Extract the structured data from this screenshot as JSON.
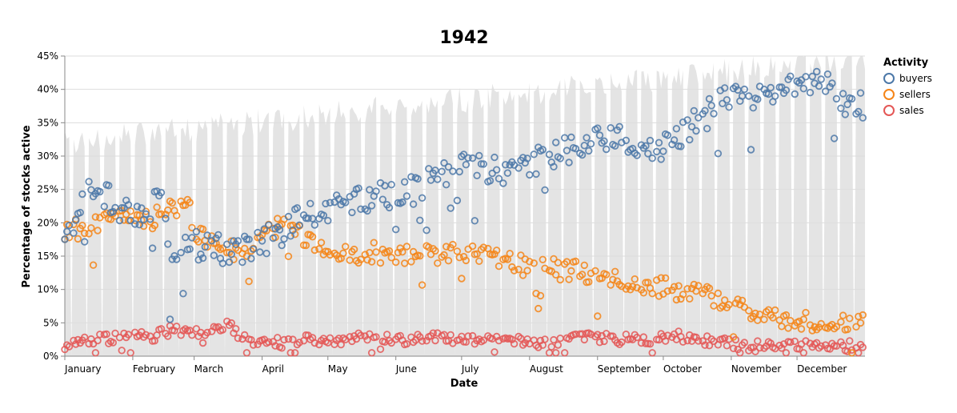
{
  "chart_data": {
    "type": "scatter",
    "title": "1942",
    "xlabel": "Date",
    "ylabel": "Percentage of stocks active",
    "ylim": [
      0,
      0.45
    ],
    "y_ticks": [
      "0%",
      "5%",
      "10%",
      "15%",
      "20%",
      "25%",
      "30%",
      "35%",
      "40%",
      "45%"
    ],
    "x_ticks": [
      "January",
      "February",
      "March",
      "April",
      "May",
      "June",
      "July",
      "August",
      "September",
      "October",
      "November",
      "December"
    ],
    "legend": {
      "title": "Activity",
      "entries": [
        "buyers",
        "sellers",
        "sales"
      ],
      "position": "top-right"
    },
    "colors": {
      "buyers": "#4c78a8",
      "sellers": "#f58518",
      "sales": "#e45756",
      "background_area": "#e4e4e4"
    },
    "x_domain_days": [
      0,
      365
    ],
    "keypoints": {
      "buyers": [
        [
          0,
          0.16
        ],
        [
          5,
          0.21
        ],
        [
          10,
          0.24
        ],
        [
          20,
          0.24
        ],
        [
          25,
          0.225
        ],
        [
          30,
          0.21
        ],
        [
          40,
          0.225
        ],
        [
          45,
          0.23
        ],
        [
          48,
          0.11
        ],
        [
          49,
          0.15
        ],
        [
          55,
          0.18
        ],
        [
          60,
          0.165
        ],
        [
          70,
          0.16
        ],
        [
          80,
          0.16
        ],
        [
          90,
          0.17
        ],
        [
          100,
          0.19
        ],
        [
          110,
          0.21
        ],
        [
          120,
          0.22
        ],
        [
          130,
          0.23
        ],
        [
          140,
          0.24
        ],
        [
          150,
          0.245
        ],
        [
          160,
          0.25
        ],
        [
          170,
          0.275
        ],
        [
          180,
          0.285
        ],
        [
          190,
          0.285
        ],
        [
          200,
          0.28
        ],
        [
          210,
          0.285
        ],
        [
          220,
          0.3
        ],
        [
          230,
          0.31
        ],
        [
          240,
          0.32
        ],
        [
          250,
          0.33
        ],
        [
          260,
          0.32
        ],
        [
          270,
          0.31
        ],
        [
          280,
          0.33
        ],
        [
          290,
          0.355
        ],
        [
          300,
          0.38
        ],
        [
          310,
          0.39
        ],
        [
          320,
          0.39
        ],
        [
          330,
          0.4
        ],
        [
          340,
          0.415
        ],
        [
          345,
          0.415
        ],
        [
          355,
          0.38
        ],
        [
          365,
          0.375
        ]
      ],
      "sellers": [
        [
          0,
          0.19
        ],
        [
          10,
          0.19
        ],
        [
          20,
          0.21
        ],
        [
          30,
          0.21
        ],
        [
          40,
          0.205
        ],
        [
          50,
          0.22
        ],
        [
          55,
          0.24
        ],
        [
          60,
          0.185
        ],
        [
          70,
          0.165
        ],
        [
          80,
          0.155
        ],
        [
          90,
          0.185
        ],
        [
          100,
          0.2
        ],
        [
          110,
          0.175
        ],
        [
          120,
          0.16
        ],
        [
          130,
          0.155
        ],
        [
          140,
          0.155
        ],
        [
          150,
          0.15
        ],
        [
          160,
          0.15
        ],
        [
          170,
          0.155
        ],
        [
          180,
          0.15
        ],
        [
          190,
          0.15
        ],
        [
          200,
          0.145
        ],
        [
          210,
          0.135
        ],
        [
          220,
          0.13
        ],
        [
          230,
          0.13
        ],
        [
          240,
          0.12
        ],
        [
          250,
          0.115
        ],
        [
          260,
          0.115
        ],
        [
          270,
          0.105
        ],
        [
          280,
          0.1
        ],
        [
          290,
          0.09
        ],
        [
          300,
          0.085
        ],
        [
          310,
          0.075
        ],
        [
          320,
          0.065
        ],
        [
          330,
          0.055
        ],
        [
          340,
          0.05
        ],
        [
          350,
          0.045
        ],
        [
          360,
          0.055
        ],
        [
          365,
          0.045
        ]
      ],
      "sales": [
        [
          0,
          0.015
        ],
        [
          10,
          0.025
        ],
        [
          20,
          0.025
        ],
        [
          30,
          0.03
        ],
        [
          40,
          0.03
        ],
        [
          50,
          0.04
        ],
        [
          60,
          0.035
        ],
        [
          70,
          0.04
        ],
        [
          75,
          0.05
        ],
        [
          80,
          0.025
        ],
        [
          90,
          0.02
        ],
        [
          100,
          0.02
        ],
        [
          110,
          0.025
        ],
        [
          120,
          0.025
        ],
        [
          130,
          0.025
        ],
        [
          140,
          0.03
        ],
        [
          150,
          0.025
        ],
        [
          160,
          0.025
        ],
        [
          170,
          0.03
        ],
        [
          180,
          0.025
        ],
        [
          190,
          0.025
        ],
        [
          200,
          0.025
        ],
        [
          210,
          0.02
        ],
        [
          220,
          0.02
        ],
        [
          230,
          0.025
        ],
        [
          240,
          0.03
        ],
        [
          250,
          0.025
        ],
        [
          260,
          0.025
        ],
        [
          270,
          0.025
        ],
        [
          280,
          0.03
        ],
        [
          290,
          0.025
        ],
        [
          300,
          0.02
        ],
        [
          310,
          0.015
        ],
        [
          320,
          0.015
        ],
        [
          330,
          0.015
        ],
        [
          340,
          0.015
        ],
        [
          350,
          0.015
        ],
        [
          360,
          0.015
        ],
        [
          365,
          0.015
        ]
      ]
    }
  }
}
